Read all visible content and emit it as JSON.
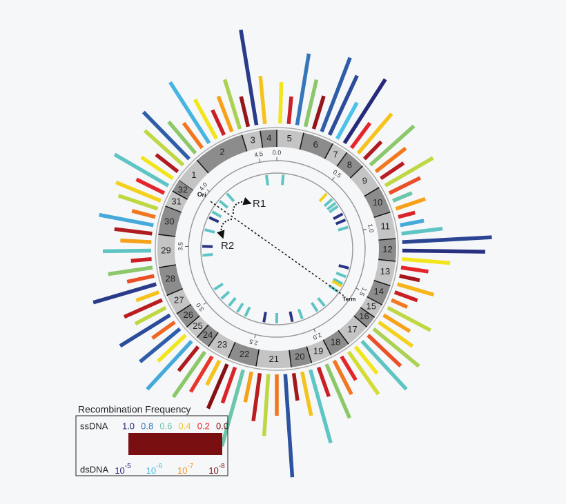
{
  "chart_data": {
    "type": "circular",
    "xlim": [
      0,
      4.64
    ],
    "xticks": [
      {
        "value": 0,
        "label": "0.0"
      },
      0.5,
      {
        "value": 1,
        "label": "1.0"
      },
      1.5,
      {
        "value": 2,
        "label": "2.0"
      },
      2.5,
      {
        "value": 3,
        "label": "3.0"
      },
      3.5,
      {
        "value": 4,
        "label": "4.0"
      },
      4.5
    ],
    "segments": [
      {
        "label": "1",
        "start": 3.931,
        "end": 4.099
      },
      {
        "label": "2",
        "start": 4.099,
        "end": 4.421
      },
      {
        "label": "3",
        "start": 4.421,
        "end": 4.537
      },
      {
        "label": "4",
        "start": 4.537,
        "end": 4.64
      },
      {
        "label": "5",
        "start": 0,
        "end": 0.168
      },
      {
        "label": "6",
        "start": 0.168,
        "end": 0.361
      },
      {
        "label": "7",
        "start": 0.361,
        "end": 0.464
      },
      {
        "label": "8",
        "start": 0.464,
        "end": 0.593
      },
      {
        "label": "9",
        "start": 0.593,
        "end": 0.76
      },
      {
        "label": "10",
        "start": 0.76,
        "end": 0.928
      },
      {
        "label": "11",
        "start": 0.928,
        "end": 1.096
      },
      {
        "label": "12",
        "start": 1.096,
        "end": 1.237
      },
      {
        "label": "13",
        "start": 1.237,
        "end": 1.392
      },
      {
        "label": "14",
        "start": 1.392,
        "end": 1.521
      },
      {
        "label": "15",
        "start": 1.521,
        "end": 1.611
      },
      {
        "label": "16",
        "start": 1.611,
        "end": 1.688
      },
      {
        "label": "17",
        "start": 1.688,
        "end": 1.843
      },
      {
        "label": "18",
        "start": 1.843,
        "end": 1.972
      },
      {
        "label": "19",
        "start": 1.972,
        "end": 2.101
      },
      {
        "label": "20",
        "start": 2.101,
        "end": 2.23
      },
      {
        "label": "21",
        "start": 2.23,
        "end": 2.449
      },
      {
        "label": "22",
        "start": 2.449,
        "end": 2.629
      },
      {
        "label": "23",
        "start": 2.629,
        "end": 2.771
      },
      {
        "label": "24",
        "start": 2.771,
        "end": 2.861
      },
      {
        "label": "25",
        "start": 2.861,
        "end": 2.952
      },
      {
        "label": "26",
        "start": 2.952,
        "end": 3.055
      },
      {
        "label": "27",
        "start": 3.055,
        "end": 3.184
      },
      {
        "label": "28",
        "start": 3.184,
        "end": 3.364
      },
      {
        "label": "29",
        "start": 3.364,
        "end": 3.57
      },
      {
        "label": "30",
        "start": 3.57,
        "end": 3.751
      },
      {
        "label": "31",
        "start": 3.751,
        "end": 3.854
      },
      {
        "label": "32",
        "start": 3.854,
        "end": 3.931
      }
    ],
    "outer_bars": {
      "x": [
        0.02,
        0.07,
        0.12,
        0.17,
        0.22,
        0.27,
        0.32,
        0.37,
        0.42,
        0.47,
        0.52,
        0.57,
        0.62,
        0.67,
        0.72,
        0.77,
        0.82,
        0.87,
        0.92,
        0.97,
        1.02,
        1.07,
        1.12,
        1.17,
        1.22,
        1.27,
        1.32,
        1.37,
        1.42,
        1.47,
        1.52,
        1.57,
        1.62,
        1.67,
        1.72,
        1.77,
        1.82,
        1.87,
        1.92,
        1.97,
        2.02,
        2.07,
        2.12,
        2.17,
        2.22,
        2.27,
        2.32,
        2.37,
        2.42,
        2.47,
        2.52,
        2.57,
        2.62,
        2.67,
        2.72,
        2.77,
        2.82,
        2.87,
        2.92,
        2.97,
        3.02,
        3.07,
        3.12,
        3.17,
        3.22,
        3.27,
        3.32,
        3.37,
        3.42,
        3.47,
        3.52,
        3.57,
        3.62,
        3.67,
        3.72,
        3.77,
        3.82,
        3.87,
        3.92,
        3.97,
        4.02,
        4.07,
        4.12,
        4.17,
        4.22,
        4.27,
        4.32,
        4.37,
        4.42,
        4.47,
        4.52,
        4.57
      ],
      "values": [
        60,
        40,
        105,
        70,
        50,
        115,
        95,
        60,
        110,
        45,
        75,
        35,
        85,
        55,
        40,
        80,
        50,
        30,
        45,
        25,
        35,
        60,
        130,
        120,
        70,
        40,
        30,
        55,
        35,
        25,
        70,
        45,
        60,
        85,
        65,
        95,
        50,
        75,
        40,
        55,
        85,
        45,
        110,
        65,
        40,
        150,
        60,
        90,
        70,
        45,
        115,
        55,
        70,
        40,
        60,
        80,
        45,
        95,
        55,
        75,
        40,
        85,
        50,
        60,
        35,
        95,
        40,
        65,
        30,
        70,
        45,
        55,
        80,
        35,
        60,
        70,
        45,
        90,
        55,
        40,
        75,
        95,
        60,
        45,
        105,
        65,
        40,
        55,
        75,
        45,
        140,
        70
      ],
      "frequency": [
        0.45,
        0.15,
        0.8,
        0.55,
        0.05,
        0.85,
        0.9,
        0.65,
        1.0,
        0.2,
        0.4,
        0.1,
        0.55,
        0.3,
        0.12,
        0.5,
        0.25,
        0.6,
        0.35,
        0.18,
        0.7,
        0.62,
        0.92,
        0.98,
        0.45,
        0.2,
        0.08,
        0.38,
        0.15,
        0.3,
        0.5,
        0.35,
        0.42,
        0.52,
        0.25,
        0.62,
        0.45,
        0.48,
        0.2,
        0.3,
        0.55,
        0.15,
        0.62,
        0.4,
        0.08,
        0.88,
        0.3,
        0.5,
        0.12,
        0.35,
        0.6,
        0.18,
        0.02,
        0.4,
        0.22,
        0.55,
        0.1,
        0.7,
        0.45,
        0.85,
        0.28,
        0.9,
        0.5,
        0.12,
        0.4,
        0.95,
        0.25,
        0.55,
        0.15,
        0.62,
        0.35,
        0.1,
        0.7,
        0.3,
        0.5,
        0.42,
        0.2,
        0.62,
        0.45,
        0.1,
        0.5,
        0.85,
        0.55,
        0.3,
        0.68,
        0.45,
        0.15,
        0.35,
        0.52,
        0.05,
        0.95,
        0.4
      ]
    },
    "inner_bars": {
      "x": [
        4.537,
        0.064,
        0.541,
        0.619,
        0.67,
        0.709,
        0.799,
        0.864,
        0.941,
        1.353,
        1.444,
        1.521,
        1.547,
        1.611,
        1.805,
        1.895,
        2.062,
        2.165,
        2.32,
        2.449,
        2.642,
        2.732,
        2.836,
        2.939,
        3.055,
        3.416,
        3.506,
        3.673,
        3.802,
        3.867,
        3.996,
        4.099
      ],
      "frequency": [
        0.62,
        0.62,
        0.42,
        0.62,
        0.62,
        0.62,
        0.97,
        0.97,
        0.62,
        0.97,
        0.62,
        0.62,
        0.42,
        0.62,
        0.62,
        0.62,
        0.62,
        0.97,
        0.62,
        0.97,
        0.62,
        0.62,
        0.62,
        0.62,
        0.62,
        0.62,
        0.97,
        0.62,
        0.97,
        0.62,
        0.62,
        0.62
      ]
    },
    "annotations": {
      "ori": {
        "label": "Ori",
        "x": 3.94
      },
      "term": {
        "label": "Term",
        "x": 1.611
      },
      "r1": "R1",
      "r2": "R2"
    },
    "legend": {
      "title": "Recombination Frequency",
      "ssdna": {
        "label": "ssDNA",
        "lim": [
          1,
          0
        ],
        "ticks": [
          {
            "value": 1,
            "label": "1.0"
          },
          0.8,
          0.6,
          0.4,
          0.2,
          {
            "value": 0,
            "label": "0.0"
          }
        ]
      },
      "dsdna": {
        "label": "dsDNA",
        "lim": [
          1e-05,
          1e-08
        ],
        "log": true,
        "ticks": [
          {
            "value": 1e-05,
            "base": "10",
            "exponent": "-5"
          },
          {
            "value": 1e-06,
            "base": "10",
            "exponent": "-6"
          },
          {
            "value": 1e-07,
            "base": "10",
            "exponent": "-7"
          },
          {
            "value": 1e-08,
            "base": "10",
            "exponent": "-8"
          }
        ]
      },
      "colorscale": [
        [
          0,
          "#7a0f12"
        ],
        [
          0.2,
          "#e4262b"
        ],
        [
          0.35,
          "#f7a11a"
        ],
        [
          0.45,
          "#f2e51c"
        ],
        [
          0.55,
          "#8cc86a"
        ],
        [
          0.65,
          "#4cc3ea"
        ],
        [
          0.85,
          "#2f5ea9"
        ],
        [
          1,
          "#27297a"
        ]
      ]
    }
  }
}
